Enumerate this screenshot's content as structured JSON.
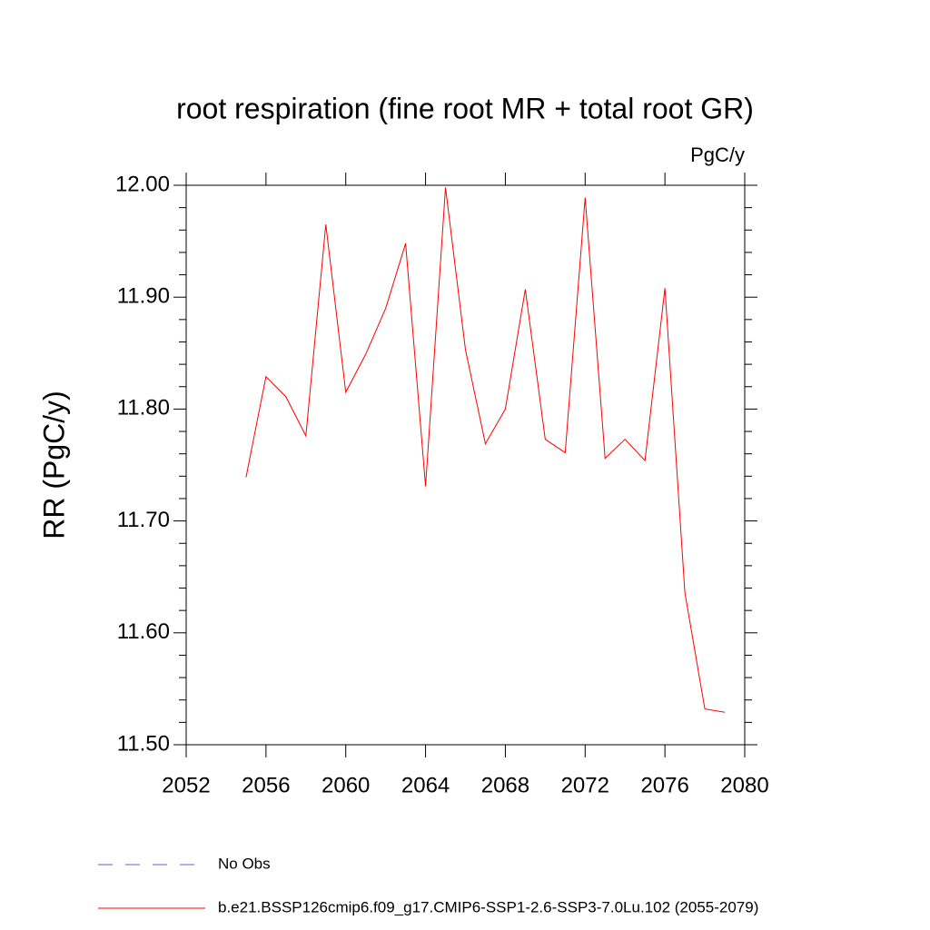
{
  "chart_data": {
    "type": "line",
    "title": "root respiration (fine root MR + total root GR)",
    "units": "PgC/y",
    "ylabel": "RR  (PgC/y)",
    "x": [
      2055,
      2056,
      2057,
      2058,
      2059,
      2060,
      2061,
      2062,
      2063,
      2064,
      2065,
      2066,
      2067,
      2068,
      2069,
      2070,
      2071,
      2072,
      2073,
      2074,
      2075,
      2076,
      2077,
      2078,
      2079
    ],
    "series": [
      {
        "name": "No Obs",
        "color": "#6a5acd",
        "dashed": true,
        "values": [
          null,
          null,
          null,
          null,
          null,
          null,
          null,
          null,
          null,
          null,
          null,
          null,
          null,
          null,
          null,
          null,
          null,
          null,
          null,
          null,
          null,
          null,
          null,
          null,
          null
        ]
      },
      {
        "name": "b.e21.BSSP126cmip6.f09_g17.CMIP6-SSP1-2.6-SSP3-7.0Lu.102 (2055-2079)",
        "color": "#ff0000",
        "dashed": false,
        "values": [
          11.739,
          11.829,
          11.811,
          11.776,
          11.965,
          11.815,
          11.849,
          11.89,
          11.948,
          11.731,
          11.998,
          11.853,
          11.769,
          11.8,
          11.907,
          11.773,
          11.761,
          11.989,
          11.756,
          11.773,
          11.754,
          11.908,
          11.636,
          11.532,
          11.529
        ]
      }
    ],
    "xlim": [
      2052,
      2080
    ],
    "xticks": [
      2052,
      2056,
      2060,
      2064,
      2068,
      2072,
      2076,
      2080
    ],
    "ylim": [
      11.5,
      12.0
    ],
    "yticks": [
      {
        "value": 11.5,
        "label": "11.50"
      },
      {
        "value": 11.6,
        "label": "11.60"
      },
      {
        "value": 11.7,
        "label": "11.70"
      },
      {
        "value": 11.8,
        "label": "11.80"
      },
      {
        "value": 11.9,
        "label": "11.90"
      },
      {
        "value": 12.0,
        "label": "12.00"
      }
    ],
    "grid": false
  }
}
